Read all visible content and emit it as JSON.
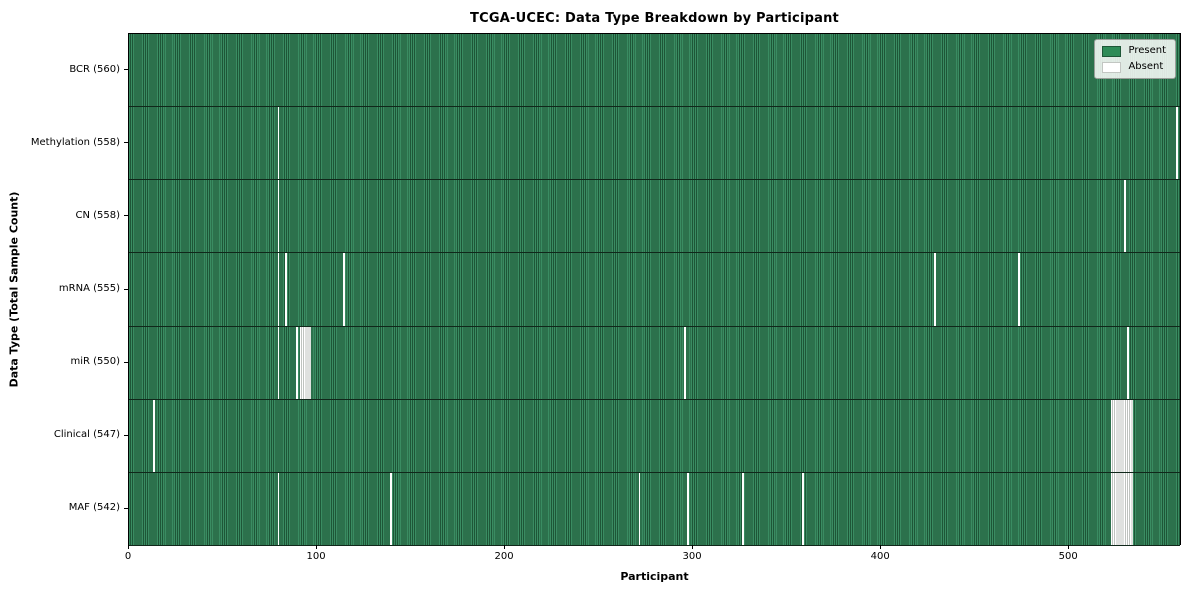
{
  "title": "TCGA-UCEC: Data Type Breakdown by Participant",
  "chart_data": {
    "type": "heatmap",
    "title": "TCGA-UCEC: Data Type Breakdown by Participant",
    "xlabel": "Participant",
    "ylabel": "Data Type (Total Sample Count)",
    "xlim": [
      0,
      560
    ],
    "n_participants": 560,
    "x_ticks": [
      0,
      100,
      200,
      300,
      400,
      500
    ],
    "grid": false,
    "legend_position": "upper right",
    "legend": [
      {
        "label": "Present",
        "color": "#2e8b57"
      },
      {
        "label": "Absent",
        "color": "#ffffff"
      }
    ],
    "colors": {
      "present_fill": "#2e8b57",
      "present_edge": "#1e5637",
      "absent_fill": "#ffffff"
    },
    "rows": [
      {
        "name": "bcr",
        "label": "BCR (560)",
        "total_samples": 560,
        "absent_participants": []
      },
      {
        "name": "methylation",
        "label": "Methylation (558)",
        "total_samples": 558,
        "absent_participants": [
          79,
          557
        ]
      },
      {
        "name": "cn",
        "label": "CN (558)",
        "total_samples": 558,
        "absent_participants": [
          79,
          529
        ]
      },
      {
        "name": "mrna",
        "label": "mRNA (555)",
        "total_samples": 555,
        "absent_participants": [
          79,
          83,
          114,
          428,
          473
        ]
      },
      {
        "name": "mir",
        "label": "miR (550)",
        "total_samples": 550,
        "absent_participants": [
          79,
          89,
          91,
          92,
          93,
          94,
          95,
          96,
          295,
          531
        ]
      },
      {
        "name": "clinical",
        "label": "Clinical (547)",
        "total_samples": 547,
        "absent_participants": [
          13,
          522,
          523,
          524,
          525,
          526,
          527,
          528,
          529,
          530,
          531,
          532,
          533
        ]
      },
      {
        "name": "maf",
        "label": "MAF (542)",
        "total_samples": 542,
        "absent_participants": [
          79,
          139,
          271,
          297,
          326,
          358,
          522,
          523,
          524,
          525,
          526,
          527,
          528,
          529,
          530,
          531,
          532,
          533
        ]
      }
    ]
  }
}
